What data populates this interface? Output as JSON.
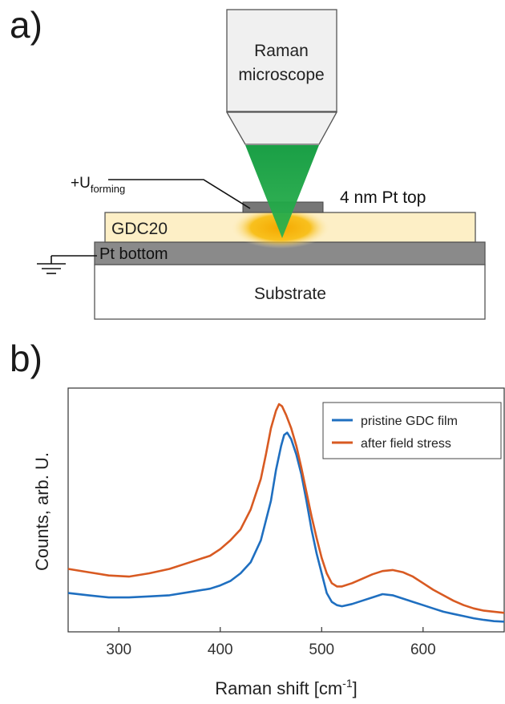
{
  "panel_a": {
    "label": "a)",
    "microscope_line1": "Raman",
    "microscope_line2": "microscope",
    "voltage_prefix": "+U",
    "voltage_subscript": "forming",
    "top_electrode": "4 nm Pt top",
    "film": "GDC20",
    "bottom_electrode": "Pt bottom",
    "substrate": "Substrate",
    "colors": {
      "laser": "#1fa045",
      "hotspot": "#f5b100",
      "film": "#fdefc6",
      "platinum": "#8a8a8a",
      "microscope": "#f0f0f0"
    }
  },
  "panel_b": {
    "label": "b)"
  },
  "chart_data": {
    "type": "line",
    "title": "",
    "xlabel_main": "Raman shift [cm",
    "xlabel_sup": "-1",
    "xlabel_end": "]",
    "ylabel": "Counts, arb. U.",
    "xlim": [
      250,
      680
    ],
    "ylim": [
      0,
      1
    ],
    "y_ticks_shown": false,
    "x_ticks": [
      300,
      400,
      500,
      600
    ],
    "legend_position": "top-right",
    "series": [
      {
        "name": "pristine GDC film",
        "color": "#1f6fc0",
        "x": [
          250,
          270,
          290,
          310,
          330,
          350,
          370,
          390,
          400,
          410,
          420,
          430,
          440,
          450,
          455,
          460,
          463,
          466,
          470,
          475,
          480,
          485,
          490,
          495,
          500,
          505,
          510,
          515,
          520,
          530,
          540,
          550,
          560,
          570,
          580,
          590,
          600,
          610,
          620,
          630,
          640,
          650,
          660,
          670,
          680
        ],
        "y": [
          0.14,
          0.13,
          0.12,
          0.12,
          0.125,
          0.13,
          0.145,
          0.16,
          0.175,
          0.195,
          0.23,
          0.28,
          0.38,
          0.56,
          0.7,
          0.81,
          0.86,
          0.87,
          0.84,
          0.77,
          0.68,
          0.56,
          0.43,
          0.32,
          0.23,
          0.14,
          0.1,
          0.085,
          0.08,
          0.09,
          0.105,
          0.12,
          0.135,
          0.13,
          0.115,
          0.1,
          0.085,
          0.07,
          0.055,
          0.045,
          0.035,
          0.025,
          0.018,
          0.012,
          0.01
        ]
      },
      {
        "name": "after field stress",
        "color": "#d85a22",
        "x": [
          250,
          270,
          290,
          310,
          330,
          350,
          370,
          390,
          400,
          410,
          420,
          430,
          440,
          445,
          450,
          455,
          458,
          461,
          465,
          470,
          475,
          480,
          485,
          490,
          495,
          500,
          505,
          510,
          515,
          520,
          530,
          540,
          550,
          560,
          570,
          580,
          590,
          600,
          610,
          620,
          630,
          640,
          650,
          660,
          670,
          680
        ],
        "y": [
          0.25,
          0.235,
          0.22,
          0.215,
          0.23,
          0.25,
          0.28,
          0.31,
          0.34,
          0.38,
          0.43,
          0.52,
          0.66,
          0.77,
          0.89,
          0.97,
          1.0,
          0.99,
          0.95,
          0.89,
          0.81,
          0.71,
          0.6,
          0.49,
          0.39,
          0.3,
          0.23,
          0.185,
          0.17,
          0.17,
          0.185,
          0.205,
          0.225,
          0.24,
          0.245,
          0.235,
          0.215,
          0.185,
          0.155,
          0.13,
          0.105,
          0.085,
          0.07,
          0.06,
          0.055,
          0.05
        ]
      }
    ]
  }
}
